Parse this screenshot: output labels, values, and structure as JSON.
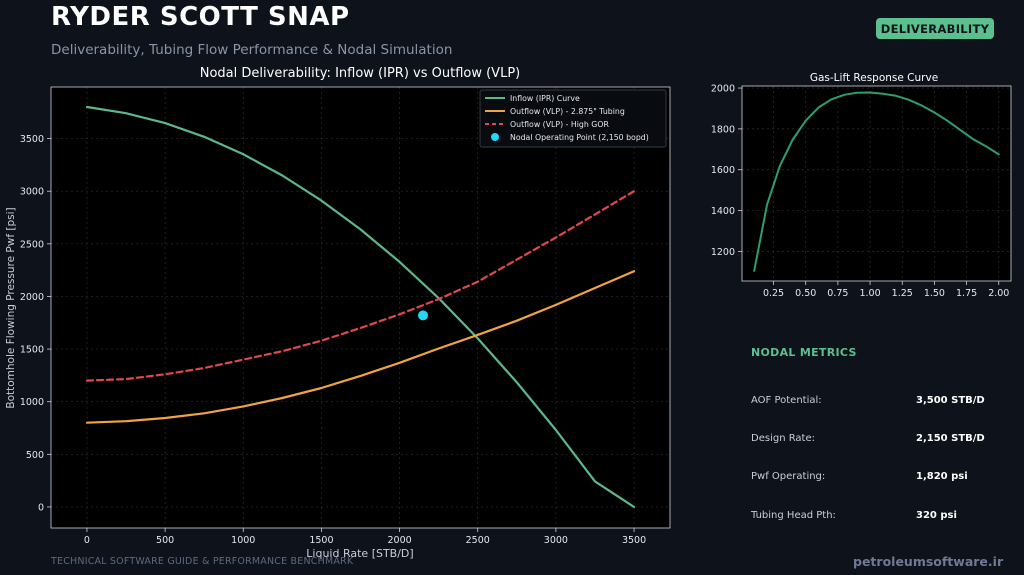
{
  "header": {
    "title": "RYDER SCOTT SNAP",
    "subtitle": "Deliverability, Tubing Flow Performance & Nodal Simulation",
    "badge": "DELIVERABILITY"
  },
  "chart_data": [
    {
      "type": "line",
      "title": "Nodal Deliverability: Inflow (IPR) vs Outflow (VLP)",
      "xlabel": "Liquid Rate [STB/D]",
      "ylabel": "Bottomhole Flowing Pressure Pwf [psi]",
      "xlim": [
        -230,
        3730
      ],
      "ylim": [
        -200,
        3990
      ],
      "xticks": [
        0,
        500,
        1000,
        1500,
        2000,
        2500,
        3000,
        3500
      ],
      "yticks": [
        0,
        500,
        1000,
        1500,
        2000,
        2500,
        3000,
        3500
      ],
      "grid": true,
      "legend_position": "top-right",
      "series": [
        {
          "name": "Inflow (IPR) Curve",
          "color": "#5cb88a",
          "style": "solid",
          "x": [
            0,
            250,
            500,
            750,
            1000,
            1250,
            1500,
            1750,
            2000,
            2250,
            2500,
            2750,
            3000,
            3250,
            3500
          ],
          "y": [
            3800,
            3741,
            3647,
            3517,
            3351,
            3149,
            2911,
            2637,
            2328,
            1983,
            1601,
            1184,
            731,
            243,
            0
          ]
        },
        {
          "name": "Outflow (VLP) - 2.875\" Tubing",
          "color": "#f0a340",
          "style": "solid",
          "x": [
            0,
            250,
            500,
            750,
            1000,
            1250,
            1500,
            1750,
            2000,
            2250,
            2500,
            2750,
            3000,
            3250,
            3500
          ],
          "y": [
            800,
            815,
            845,
            890,
            955,
            1035,
            1130,
            1245,
            1370,
            1505,
            1635,
            1770,
            1920,
            2080,
            2240
          ]
        },
        {
          "name": "Outflow (VLP) - High GOR",
          "color": "#e0474f",
          "style": "dashed",
          "x": [
            0,
            250,
            500,
            750,
            1000,
            1250,
            1500,
            1750,
            2000,
            2250,
            2500,
            2750,
            3000,
            3250,
            3500
          ],
          "y": [
            1200,
            1215,
            1260,
            1320,
            1400,
            1480,
            1580,
            1700,
            1830,
            1975,
            2140,
            2350,
            2560,
            2780,
            3000
          ]
        }
      ],
      "points": [
        {
          "name": "Nodal Operating Point (2,150 bopd)",
          "color": "#22d8f2",
          "x": 2150,
          "y": 1820
        }
      ]
    },
    {
      "type": "line",
      "title": "Gas-Lift Response Curve",
      "xlim": [
        0.005,
        2.095
      ],
      "ylim": [
        1055,
        2010
      ],
      "xticks": [
        0.25,
        0.5,
        0.75,
        1.0,
        1.25,
        1.5,
        1.75,
        2.0
      ],
      "xtick_labels": [
        "0.25",
        "0.50",
        "0.75",
        "1.00",
        "1.25",
        "1.50",
        "1.75",
        "2.00"
      ],
      "yticks": [
        1200,
        1400,
        1600,
        1800,
        2000
      ],
      "grid": true,
      "series": [
        {
          "color": "#2f9e6e",
          "style": "solid",
          "x": [
            0.1,
            0.2,
            0.3,
            0.4,
            0.5,
            0.6,
            0.7,
            0.8,
            0.9,
            1.0,
            1.1,
            1.2,
            1.3,
            1.4,
            1.5,
            1.6,
            1.7,
            1.8,
            1.9,
            2.0
          ],
          "y": [
            1105,
            1430,
            1620,
            1748,
            1840,
            1905,
            1945,
            1967,
            1977,
            1978,
            1972,
            1962,
            1943,
            1915,
            1880,
            1840,
            1795,
            1750,
            1715,
            1675
          ]
        }
      ]
    }
  ],
  "metrics": {
    "title": "NODAL METRICS",
    "rows": [
      {
        "label": "AOF Potential:",
        "value": "3,500 STB/D"
      },
      {
        "label": "Design Rate:",
        "value": "2,150 STB/D"
      },
      {
        "label": "Pwf Operating:",
        "value": "1,820 psi"
      },
      {
        "label": "Tubing Head Pth:",
        "value": "320 psi"
      }
    ]
  },
  "footer": {
    "left": "TECHNICAL SOFTWARE GUIDE & PERFORMANCE BENCHMARK",
    "right": "petroleumsoftware.ir"
  }
}
